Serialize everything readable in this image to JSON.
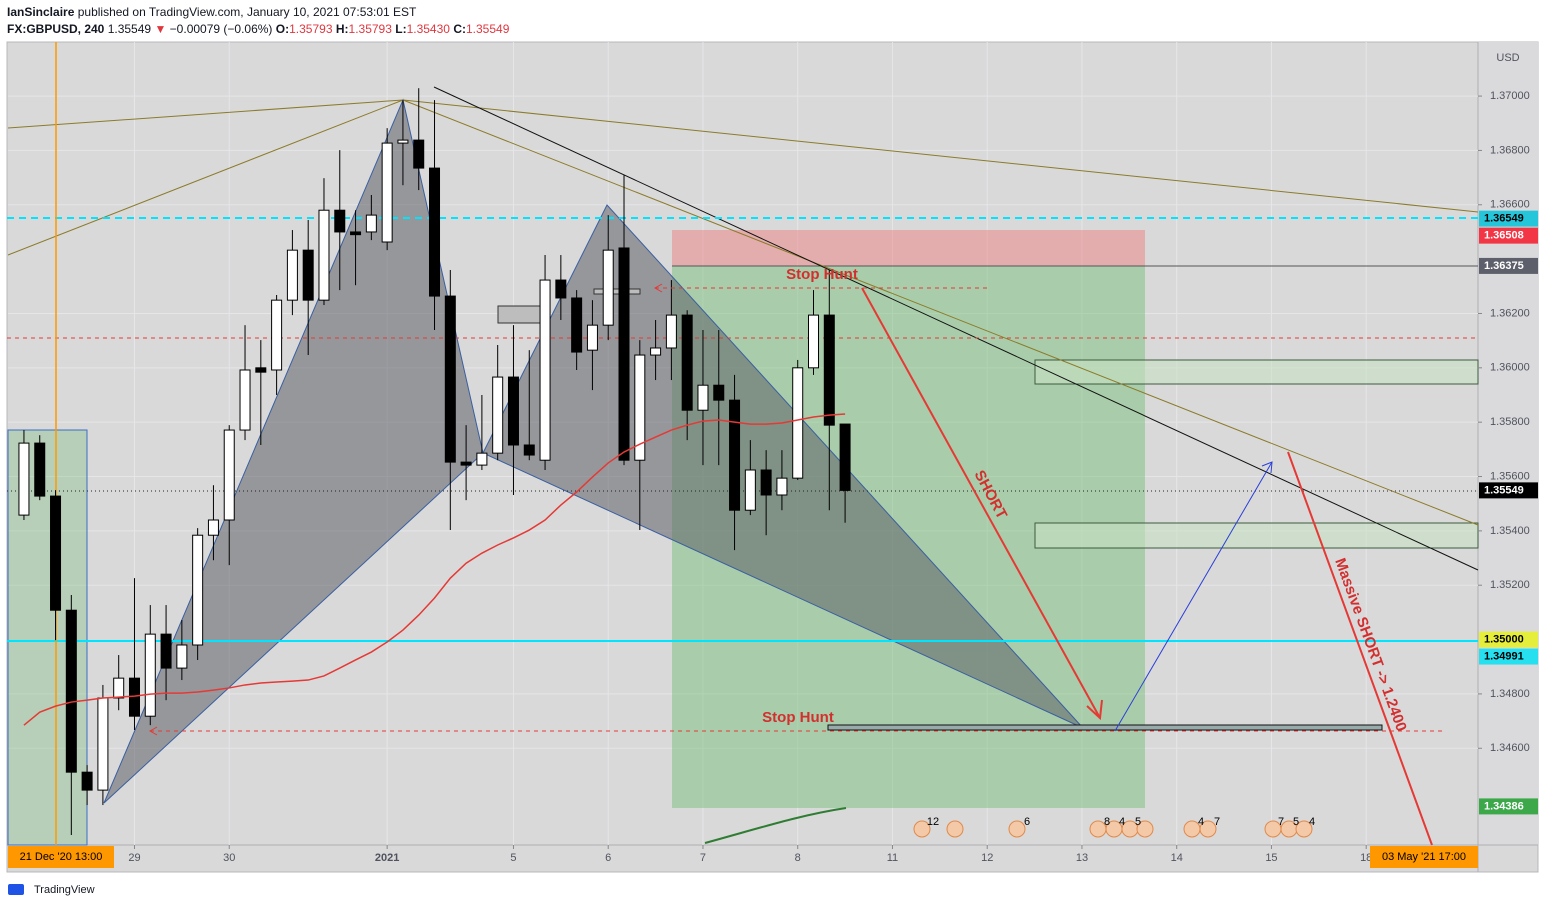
{
  "header": {
    "author": "IanSinclaire",
    "published": "published on TradingView.com, January 10, 2021 07:53:01 EST",
    "symbol": "FX:GBPUSD, 240",
    "last": "1.35549",
    "arrow": "▼",
    "change": "−0.00079 (−0.06%)",
    "ohlc": [
      {
        "label": "O:",
        "value": "1.35793"
      },
      {
        "label": "H:",
        "value": "1.35793"
      },
      {
        "label": "L:",
        "value": "1.35430"
      },
      {
        "label": "C:",
        "value": "1.35549"
      }
    ]
  },
  "chart_data": {
    "type": "candlestick",
    "currency": "USD",
    "up_color": "#ffffff",
    "down_color": "#000000",
    "grid": true,
    "xlim": [
      -1.01,
      92.08
    ],
    "xticks": [
      {
        "value": 7,
        "label": "29"
      },
      {
        "value": 13,
        "label": "30"
      },
      {
        "value": 23,
        "label": "2021"
      },
      {
        "value": 31,
        "label": "5"
      },
      {
        "value": 37,
        "label": "6"
      },
      {
        "value": 43,
        "label": "7"
      },
      {
        "value": 49,
        "label": "8"
      },
      {
        "value": 55,
        "label": "11"
      },
      {
        "value": 61,
        "label": "12"
      },
      {
        "value": 67,
        "label": "13"
      },
      {
        "value": 73,
        "label": "14"
      },
      {
        "value": 79,
        "label": "15"
      },
      {
        "value": 85,
        "label": "18"
      }
    ],
    "ylim": [
      1.34244,
      1.37199
    ],
    "yticks": [
      {
        "value": 1.37,
        "label": "1.37000"
      },
      {
        "value": 1.368,
        "label": "1.36800"
      },
      {
        "value": 1.366,
        "label": "1.36600"
      },
      {
        "value": 1.362,
        "label": "1.36200"
      },
      {
        "value": 1.36,
        "label": "1.36000"
      },
      {
        "value": 1.358,
        "label": "1.35800"
      },
      {
        "value": 1.356,
        "label": "1.35600"
      },
      {
        "value": 1.354,
        "label": "1.35400"
      },
      {
        "value": 1.352,
        "label": "1.35200"
      },
      {
        "value": 1.348,
        "label": "1.34800"
      },
      {
        "value": 1.346,
        "label": "1.34600"
      }
    ],
    "open": [
      1.35458,
      1.35723,
      1.35528,
      1.35108,
      1.34512,
      1.34446,
      1.34785,
      1.34858,
      1.34718,
      1.3502,
      1.34895,
      1.3498,
      1.35384,
      1.3544,
      1.35771,
      1.36,
      1.35992,
      1.36249,
      1.36433,
      1.36249,
      1.3658,
      1.365,
      1.365,
      1.36463,
      1.36827,
      1.36838,
      1.36735,
      1.36264,
      1.35653,
      1.35642,
      1.35686,
      1.35966,
      1.35716,
      1.3566,
      1.36323,
      1.36257,
      1.36065,
      1.36157,
      1.36441,
      1.3566,
      1.36047,
      1.36073,
      1.36194,
      1.35844,
      1.35936,
      1.35881,
      1.35476,
      1.35624,
      1.35532,
      1.35594,
      1.36,
      1.36194,
      1.35793
    ],
    "high": [
      1.35771,
      1.35752,
      1.3555,
      1.35164,
      1.34538,
      1.34833,
      1.34943,
      1.35226,
      1.35127,
      1.35127,
      1.35072,
      1.3541,
      1.35568,
      1.35789,
      1.36157,
      1.36102,
      1.36268,
      1.36507,
      1.36544,
      1.36698,
      1.36801,
      1.3658,
      1.36636,
      1.36882,
      1.36985,
      1.37029,
      1.36985,
      1.3636,
      1.35789,
      1.359,
      1.36084,
      1.36157,
      1.36065,
      1.36415,
      1.36415,
      1.36286,
      1.36249,
      1.36562,
      1.36709,
      1.36102,
      1.36176,
      1.36323,
      1.36212,
      1.36139,
      1.36139,
      1.35974,
      1.35734,
      1.35697,
      1.35697,
      1.36029,
      1.36286,
      1.3636,
      1.35793
    ],
    "low": [
      1.3544,
      1.35513,
      1.34998,
      1.34281,
      1.34391,
      1.34391,
      1.3474,
      1.34667,
      1.34685,
      1.34777,
      1.34851,
      1.34925,
      1.35292,
      1.35274,
      1.35734,
      1.35716,
      1.359,
      1.36194,
      1.36047,
      1.36231,
      1.36286,
      1.36304,
      1.3647,
      1.36433,
      1.36672,
      1.36654,
      1.36139,
      1.35403,
      1.35513,
      1.35624,
      1.3566,
      1.35532,
      1.3566,
      1.35624,
      1.36176,
      1.35992,
      1.35918,
      1.36102,
      1.35642,
      1.35403,
      1.35955,
      1.35955,
      1.35734,
      1.35642,
      1.35642,
      1.35329,
      1.35458,
      1.35384,
      1.35476,
      1.35587,
      1.35974,
      1.35476,
      1.3543
    ],
    "close": [
      1.35723,
      1.35528,
      1.35108,
      1.34512,
      1.34446,
      1.34785,
      1.34858,
      1.34718,
      1.3502,
      1.34895,
      1.3498,
      1.35384,
      1.3544,
      1.35771,
      1.35992,
      1.35984,
      1.36249,
      1.36433,
      1.36249,
      1.3658,
      1.365,
      1.3649,
      1.36562,
      1.36827,
      1.36838,
      1.36735,
      1.36264,
      1.35653,
      1.35642,
      1.35686,
      1.35966,
      1.35716,
      1.35679,
      1.36323,
      1.36257,
      1.36058,
      1.36157,
      1.36433,
      1.3566,
      1.36047,
      1.36073,
      1.36194,
      1.35844,
      1.35936,
      1.35881,
      1.35476,
      1.35624,
      1.35532,
      1.35594,
      1.36,
      1.36194,
      1.35789,
      1.35549
    ],
    "ma": {
      "color": "#e53935",
      "values": [
        1.34685,
        1.34733,
        1.34755,
        1.3477,
        1.34777,
        1.34785,
        1.34788,
        1.34792,
        1.34799,
        1.34803,
        1.34803,
        1.34807,
        1.34814,
        1.34822,
        1.34833,
        1.3484,
        1.34844,
        1.34847,
        1.34851,
        1.34866,
        1.34895,
        1.34925,
        1.34954,
        1.34991,
        1.35035,
        1.3509,
        1.35153,
        1.35226,
        1.35281,
        1.35318,
        1.35348,
        1.35374,
        1.35403,
        1.3544,
        1.35495,
        1.35543,
        1.35598,
        1.3565,
        1.3569,
        1.35719,
        1.35745,
        1.35771,
        1.35789,
        1.35804,
        1.35808,
        1.358,
        1.35793,
        1.35793,
        1.35797,
        1.35808,
        1.35819,
        1.35826,
        1.3583
      ]
    },
    "price_labels": [
      {
        "value": 1.36549,
        "label": "1.36549",
        "color": "#26c6da",
        "text_color": "#000000"
      },
      {
        "value": 1.36508,
        "label": "1.36508",
        "color": "#f23645",
        "text_color": "#ffffff"
      },
      {
        "value": 1.36375,
        "label": "1.36375",
        "color": "#5d606b",
        "text_color": "#ffffff"
      },
      {
        "value": 1.35549,
        "label": "1.35549",
        "color": "#000000",
        "text_color": "#ffffff"
      },
      {
        "value": 1.35,
        "label": "1.35000",
        "color": "#e6ee3c",
        "text_color": "#000000"
      },
      {
        "value": 1.34991,
        "label": "1.34991",
        "color": "#26e0f0",
        "text_color": "#000000"
      },
      {
        "value": 1.34386,
        "label": "1.34386",
        "color": "#3ca84a",
        "text_color": "#ffffff"
      }
    ],
    "annotations": [
      "Stop Hunt",
      "Stop Hunt",
      "SHORT",
      "Massive SHORT -> 1.2400"
    ],
    "cursor_labels": [
      "21 Dec '20  13:00",
      "03 May '21  17:00"
    ],
    "events": [
      "12",
      "6",
      "8",
      "4",
      "5",
      "4",
      "7",
      "7",
      "5",
      "4"
    ]
  },
  "footer": {
    "brand": "TradingView"
  }
}
